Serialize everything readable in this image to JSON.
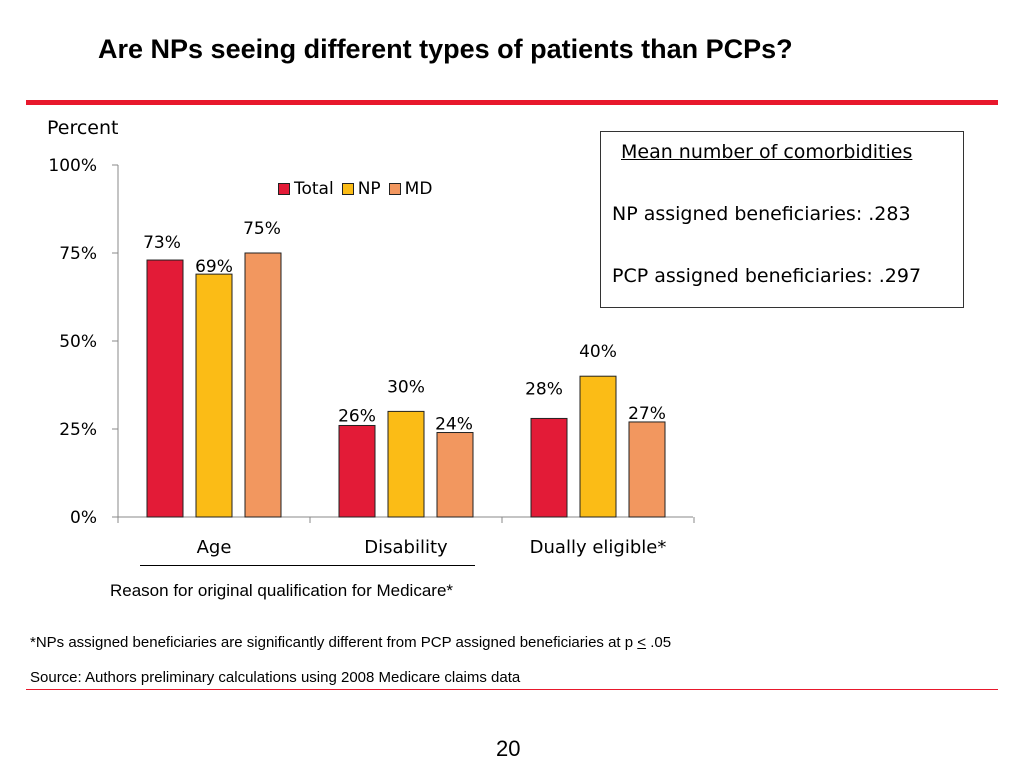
{
  "slide": {
    "title": "Are NPs seeing different types of patients than PCPs?",
    "page_number": "20",
    "footnote_prefix": "*NPs assigned beneficiaries are significantly different from PCP assigned beneficiaries at p ",
    "footnote_symbol": "<",
    "footnote_suffix": " .05",
    "source": "Source: Authors preliminary calculations using 2008 Medicare claims data",
    "accent_color": "#e8182c"
  },
  "info_box": {
    "title": "Mean number of comorbidities",
    "line1": "NP assigned beneficiaries:  .283",
    "line2": "PCP assigned beneficiaries:  .297"
  },
  "chart_data": {
    "type": "bar",
    "ylabel": "Percent",
    "xlabel": "Reason for original qualification for Medicare*",
    "categories": [
      "Age",
      "Disability",
      "Dually eligible*"
    ],
    "ylim": [
      0,
      100
    ],
    "yticks": [
      0,
      25,
      50,
      75,
      100
    ],
    "ytick_labels": [
      "0%",
      "25%",
      "50%",
      "75%",
      "100%"
    ],
    "grid": false,
    "legend_position": "top-center",
    "series": [
      {
        "name": "Total",
        "color": "#e31b37",
        "values": [
          73,
          26,
          28
        ],
        "labels": [
          "73%",
          "26%",
          "28%"
        ]
      },
      {
        "name": "NP",
        "color": "#fbbc16",
        "values": [
          69,
          30,
          40
        ],
        "labels": [
          "69%",
          "30%",
          "40%"
        ]
      },
      {
        "name": "MD",
        "color": "#f2975f",
        "values": [
          75,
          24,
          27
        ],
        "labels": [
          "75%",
          "24%",
          "27%"
        ]
      }
    ]
  }
}
